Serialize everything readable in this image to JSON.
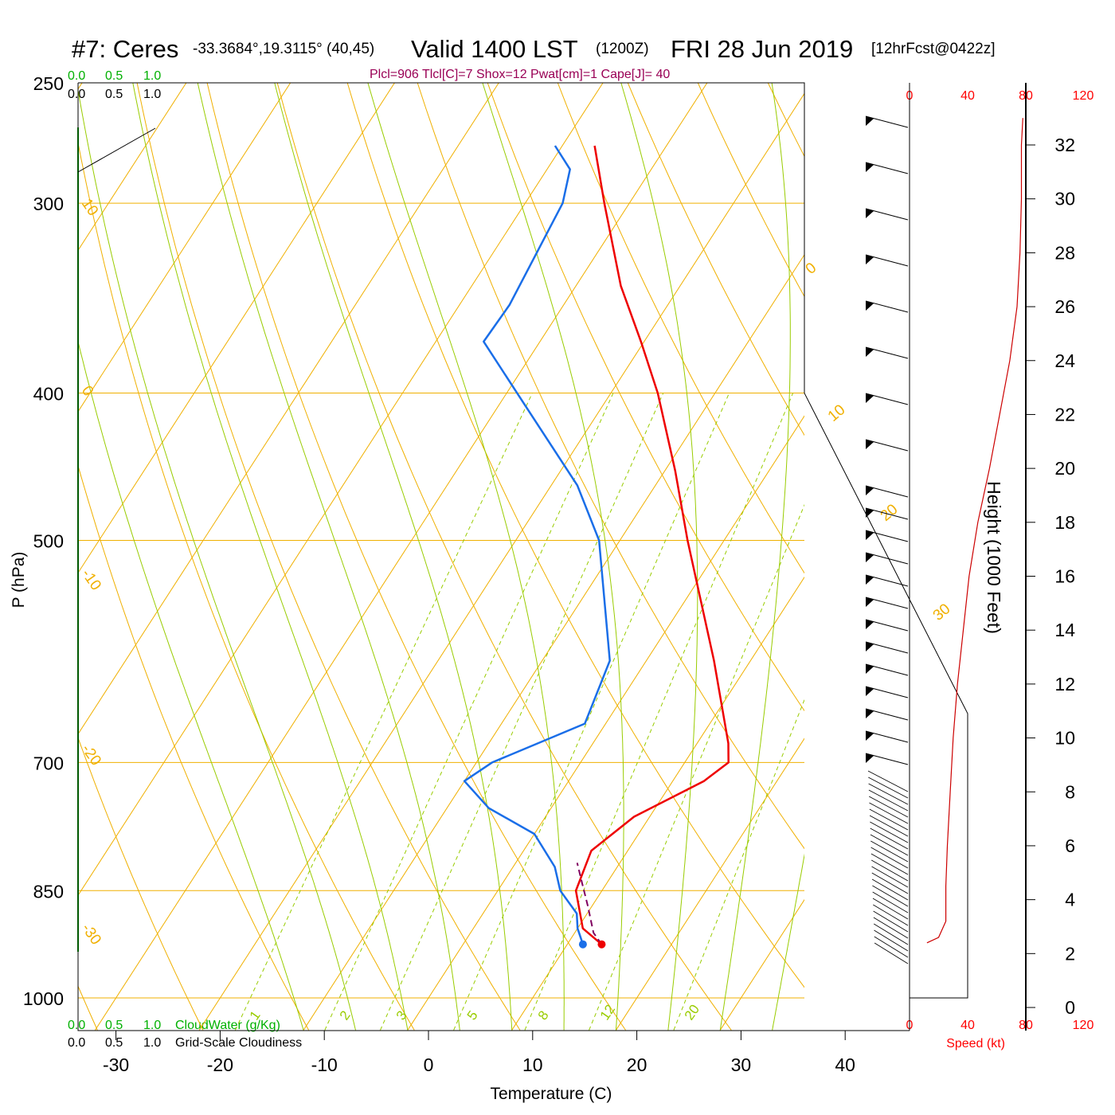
{
  "header": {
    "station": "#7: Ceres",
    "coords": "-33.3684°,19.3115° (40,45)",
    "valid": "Valid 1400 LST",
    "utc": "(1200Z)",
    "date": "FRI 28 Jun 2019",
    "forecast": "[12hrFcst@0422z]",
    "indices": "Plcl=906 Tlcl[C]=7 Shox=12 Pwat[cm]=1 Cape[J]= 40"
  },
  "scales": {
    "cloudwater_top": [
      "0.0",
      "0.5",
      "1.0"
    ],
    "cloudiness_top": [
      "0.0",
      "0.5",
      "1.0"
    ],
    "cloudwater_bottom": [
      "0.0",
      "0.5",
      "1.0"
    ],
    "cloudiness_bottom": [
      "0.0",
      "0.5",
      "1.0"
    ],
    "cloudwater_label": "CloudWater (g/Kg)",
    "cloudiness_label": "Grid-Scale Cloudiness",
    "speed_top": [
      "0",
      "40",
      "80",
      "120"
    ],
    "speed_bottom": [
      "0",
      "40",
      "80",
      "120"
    ],
    "speed_label": "Speed (kt)"
  },
  "colors": {
    "temperature": "#ee0000",
    "dewpoint": "#1a6ee8",
    "parcel": "#800060",
    "isotherm": "#f0b000",
    "dry_adiabat": "#f0b000",
    "moist_adiabat": "#99cc00",
    "mixing_ratio": "#99cc00",
    "cloudwater": "#00b000",
    "wind_speed": "#cc0000",
    "indices": "#990055"
  },
  "chart_data": {
    "type": "line",
    "subtype": "skew-T log-P sounding",
    "xlabel": "Temperature (C)",
    "ylabel": "P (hPa)",
    "y2label": "Height (1000 Feet)",
    "x_ticks": [
      "-30",
      "-20",
      "-10",
      "0",
      "10",
      "20",
      "30",
      "40"
    ],
    "p_ticks": [
      "250",
      "300",
      "400",
      "500",
      "700",
      "850",
      "1000"
    ],
    "height_ticks": [
      "0",
      "2",
      "4",
      "6",
      "8",
      "10",
      "12",
      "14",
      "16",
      "18",
      "20",
      "22",
      "24",
      "26",
      "28",
      "30",
      "32"
    ],
    "isotherm_labels": [
      "10",
      "0",
      "-10",
      "-20",
      "-30",
      "0",
      "10",
      "20",
      "30"
    ],
    "mixing_ratio_labels": [
      "1",
      "2",
      "3",
      "5",
      "8",
      "12",
      "20"
    ],
    "grid": true,
    "series": [
      {
        "name": "",
        "role": "temperature",
        "points": [
          {
            "p": 922,
            "t": 13.3
          },
          {
            "p": 900,
            "t": 10.5
          },
          {
            "p": 850,
            "t": 7.5
          },
          {
            "p": 800,
            "t": 6.5
          },
          {
            "p": 760,
            "t": 8.5
          },
          {
            "p": 720,
            "t": 13.0
          },
          {
            "p": 700,
            "t": 14.2
          },
          {
            "p": 680,
            "t": 13.0
          },
          {
            "p": 600,
            "t": 6.5
          },
          {
            "p": 500,
            "t": -3.5
          },
          {
            "p": 450,
            "t": -9.0
          },
          {
            "p": 400,
            "t": -15.5
          },
          {
            "p": 370,
            "t": -20.3
          },
          {
            "p": 340,
            "t": -25.7
          },
          {
            "p": 300,
            "t": -32.4
          },
          {
            "p": 275,
            "t": -36.9
          }
        ]
      },
      {
        "name": "",
        "role": "dewpoint",
        "points": [
          {
            "p": 922,
            "t": 11.5
          },
          {
            "p": 900,
            "t": 10.0
          },
          {
            "p": 880,
            "t": 9.0
          },
          {
            "p": 850,
            "t": 6.0
          },
          {
            "p": 820,
            "t": 4.0
          },
          {
            "p": 780,
            "t": 0.0
          },
          {
            "p": 750,
            "t": -6.0
          },
          {
            "p": 720,
            "t": -10.0
          },
          {
            "p": 700,
            "t": -8.5
          },
          {
            "p": 660,
            "t": -2.0
          },
          {
            "p": 600,
            "t": -3.5
          },
          {
            "p": 500,
            "t": -12.0
          },
          {
            "p": 460,
            "t": -17.5
          },
          {
            "p": 400,
            "t": -29.0
          },
          {
            "p": 370,
            "t": -35.4
          },
          {
            "p": 350,
            "t": -35.2
          },
          {
            "p": 300,
            "t": -36.4
          },
          {
            "p": 285,
            "t": -37.8
          },
          {
            "p": 275,
            "t": -40.7
          }
        ]
      },
      {
        "name": "",
        "role": "parcel",
        "points": [
          {
            "p": 922,
            "t": 13.3
          },
          {
            "p": 906,
            "t": 11.8
          },
          {
            "p": 870,
            "t": 9.6
          },
          {
            "p": 840,
            "t": 7.6
          },
          {
            "p": 815,
            "t": 5.9
          }
        ]
      }
    ],
    "surface": {
      "t": 13.3,
      "td": 11.5,
      "p": 922
    },
    "wind_speed_profile": [
      {
        "h": 2.4,
        "kt": 12
      },
      {
        "h": 2.6,
        "kt": 20
      },
      {
        "h": 3.2,
        "kt": 25
      },
      {
        "h": 4.5,
        "kt": 25
      },
      {
        "h": 6,
        "kt": 26
      },
      {
        "h": 8,
        "kt": 28
      },
      {
        "h": 10,
        "kt": 30
      },
      {
        "h": 12,
        "kt": 33
      },
      {
        "h": 14,
        "kt": 37
      },
      {
        "h": 16,
        "kt": 41
      },
      {
        "h": 18,
        "kt": 47
      },
      {
        "h": 20,
        "kt": 55
      },
      {
        "h": 22,
        "kt": 62
      },
      {
        "h": 24,
        "kt": 69
      },
      {
        "h": 26,
        "kt": 74
      },
      {
        "h": 28,
        "kt": 76
      },
      {
        "h": 30,
        "kt": 77
      },
      {
        "h": 32,
        "kt": 77
      },
      {
        "h": 33,
        "kt": 78
      }
    ]
  }
}
